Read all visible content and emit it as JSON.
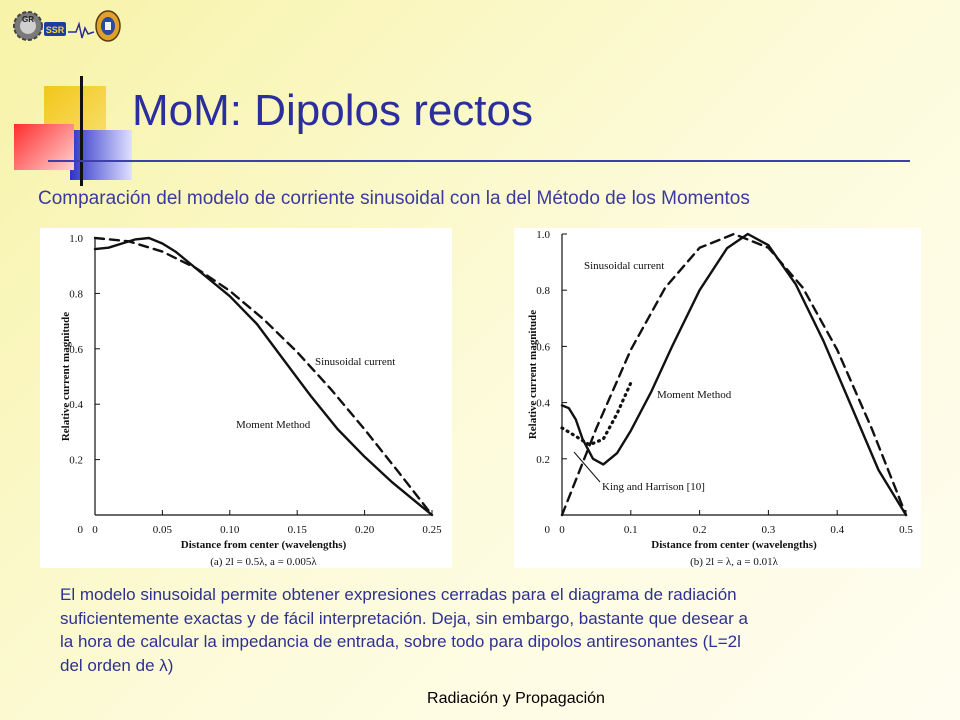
{
  "slide": {
    "title": "MoM: Dipolos rectos",
    "subtitle": "Comparación del modelo de corriente sinusoidal con la del Método de los Momentos",
    "body": [
      "El modelo sinusoidal permite obtener expresiones cerradas para el diagrama de radiación",
      "suficientemente exactas y de fácil interpretación. Deja, sin embargo, bastante que desear a",
      "la hora de calcular la impedancia de entrada, sobre todo para dipolos antiresonantes (L=2l",
      "del orden de λ)"
    ],
    "footer": "Radiación y Propagación",
    "logos": [
      "GR",
      "SSR"
    ]
  },
  "colors": {
    "title": "#2b2f9e",
    "text": "#2d3193",
    "background": "#fdfbdc"
  },
  "chart_data": [
    {
      "type": "line",
      "caption": "(a) 2l = 0.5λ, a = 0.005λ",
      "xlabel": "Distance from center (wavelengths)",
      "ylabel": "Relative current magnitude",
      "xlim": [
        0,
        0.25
      ],
      "ylim": [
        0,
        1.0
      ],
      "xticks": [
        "0",
        "0.05",
        "0.10",
        "0.15",
        "0.20",
        "0.25"
      ],
      "yticks": [
        "0",
        "0.2",
        "0.4",
        "0.6",
        "0.8",
        "1.0"
      ],
      "series": [
        {
          "name": "Sinusoidal current",
          "style": "dashed",
          "x": [
            0,
            0.025,
            0.05,
            0.075,
            0.1,
            0.125,
            0.15,
            0.175,
            0.2,
            0.225,
            0.25
          ],
          "y": [
            1.0,
            0.988,
            0.951,
            0.891,
            0.809,
            0.707,
            0.588,
            0.454,
            0.309,
            0.156,
            0.0
          ]
        },
        {
          "name": "Moment Method",
          "style": "solid",
          "x": [
            0,
            0.01,
            0.02,
            0.03,
            0.04,
            0.05,
            0.06,
            0.08,
            0.1,
            0.12,
            0.14,
            0.16,
            0.18,
            0.2,
            0.22,
            0.24,
            0.25
          ],
          "y": [
            0.96,
            0.965,
            0.98,
            0.995,
            1.0,
            0.98,
            0.95,
            0.87,
            0.79,
            0.69,
            0.56,
            0.43,
            0.31,
            0.21,
            0.12,
            0.04,
            0.0
          ]
        }
      ]
    },
    {
      "type": "line",
      "caption": "(b) 2l = λ, a = 0.01λ",
      "xlabel": "Distance from center (wavelengths)",
      "ylabel": "Relative current magnitude",
      "xlim": [
        0,
        0.5
      ],
      "ylim": [
        0,
        1.0
      ],
      "xticks": [
        "0",
        "0.1",
        "0.2",
        "0.3",
        "0.4",
        "0.5"
      ],
      "yticks": [
        "0",
        "0.2",
        "0.4",
        "0.6",
        "0.8",
        "1.0"
      ],
      "series": [
        {
          "name": "Sinusoidal current",
          "style": "dashed",
          "x": [
            0,
            0.05,
            0.1,
            0.15,
            0.2,
            0.25,
            0.3,
            0.35,
            0.4,
            0.45,
            0.5
          ],
          "y": [
            0.0,
            0.309,
            0.588,
            0.809,
            0.951,
            1.0,
            0.951,
            0.809,
            0.588,
            0.309,
            0.0
          ]
        },
        {
          "name": "Moment Method",
          "style": "solid",
          "x": [
            0,
            0.01,
            0.02,
            0.03,
            0.045,
            0.06,
            0.08,
            0.1,
            0.13,
            0.16,
            0.2,
            0.24,
            0.27,
            0.3,
            0.34,
            0.38,
            0.42,
            0.46,
            0.5
          ],
          "y": [
            0.39,
            0.38,
            0.34,
            0.27,
            0.2,
            0.18,
            0.22,
            0.3,
            0.44,
            0.6,
            0.8,
            0.95,
            1.0,
            0.96,
            0.82,
            0.62,
            0.39,
            0.16,
            0.0
          ]
        },
        {
          "name": "King and Harrison [10]",
          "style": "dotted",
          "x": [
            0,
            0.02,
            0.04,
            0.06,
            0.08,
            0.1
          ],
          "y": [
            0.31,
            0.28,
            0.25,
            0.27,
            0.36,
            0.47
          ]
        }
      ]
    }
  ]
}
